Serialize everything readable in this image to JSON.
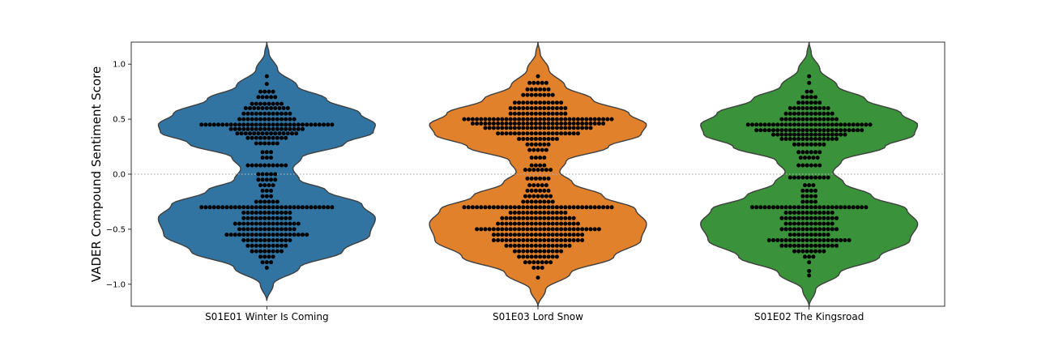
{
  "chart_data": {
    "type": "violin-swarm",
    "ylabel": "VADER Compound Sentiment Score",
    "ylim": [
      -1.2,
      1.2
    ],
    "yticks": [
      1.0,
      0.5,
      0.0,
      -0.5,
      -1.0
    ],
    "ytick_labels": [
      "1.0",
      "0.5",
      "0.0",
      "−0.5",
      "−1.0"
    ],
    "reference_line": {
      "y": 0.0,
      "style": "dotted"
    },
    "grid": false,
    "legend": "none",
    "categories": [
      "S01E01 Winter Is Coming",
      "S01E03 Lord Snow",
      "S01E02 The Kingsroad"
    ],
    "series": [
      {
        "name": "S01E01 Winter Is Coming",
        "color": "#3274a1",
        "violin_range": [
          -1.15,
          1.2
        ],
        "density": [
          [
            -1.15,
            0.0
          ],
          [
            -1.0,
            0.06
          ],
          [
            -0.85,
            0.3
          ],
          [
            -0.7,
            0.7
          ],
          [
            -0.55,
            0.95
          ],
          [
            -0.4,
            1.0
          ],
          [
            -0.28,
            0.88
          ],
          [
            -0.15,
            0.55
          ],
          [
            -0.05,
            0.3
          ],
          [
            0.05,
            0.24
          ],
          [
            0.15,
            0.32
          ],
          [
            0.28,
            0.72
          ],
          [
            0.38,
            0.98
          ],
          [
            0.45,
            1.0
          ],
          [
            0.55,
            0.86
          ],
          [
            0.68,
            0.55
          ],
          [
            0.8,
            0.28
          ],
          [
            0.95,
            0.1
          ],
          [
            1.1,
            0.02
          ],
          [
            1.2,
            0.0
          ]
        ],
        "swarm": [
          {
            "y": 0.89,
            "n": 1
          },
          {
            "y": 0.82,
            "n": 1
          },
          {
            "y": 0.75,
            "n": 4
          },
          {
            "y": 0.7,
            "n": 5
          },
          {
            "y": 0.64,
            "n": 8
          },
          {
            "y": 0.6,
            "n": 11
          },
          {
            "y": 0.55,
            "n": 12
          },
          {
            "y": 0.5,
            "n": 14
          },
          {
            "y": 0.45,
            "n": 32
          },
          {
            "y": 0.41,
            "n": 18
          },
          {
            "y": 0.37,
            "n": 15
          },
          {
            "y": 0.33,
            "n": 10
          },
          {
            "y": 0.28,
            "n": 6
          },
          {
            "y": 0.2,
            "n": 3
          },
          {
            "y": 0.15,
            "n": 3
          },
          {
            "y": 0.08,
            "n": 10
          },
          {
            "y": 0.0,
            "n": 5
          },
          {
            "y": -0.05,
            "n": 5
          },
          {
            "y": -0.1,
            "n": 4
          },
          {
            "y": -0.15,
            "n": 3
          },
          {
            "y": -0.2,
            "n": 3
          },
          {
            "y": -0.25,
            "n": 6
          },
          {
            "y": -0.3,
            "n": 32
          },
          {
            "y": -0.35,
            "n": 12
          },
          {
            "y": -0.4,
            "n": 12
          },
          {
            "y": -0.45,
            "n": 16
          },
          {
            "y": -0.5,
            "n": 14
          },
          {
            "y": -0.55,
            "n": 20
          },
          {
            "y": -0.6,
            "n": 12
          },
          {
            "y": -0.65,
            "n": 10
          },
          {
            "y": -0.7,
            "n": 8
          },
          {
            "y": -0.75,
            "n": 4
          },
          {
            "y": -0.8,
            "n": 3
          },
          {
            "y": -0.85,
            "n": 1
          }
        ]
      },
      {
        "name": "S01E03 Lord Snow",
        "color": "#e1812c",
        "violin_range": [
          -1.2,
          1.2
        ],
        "density": [
          [
            -1.2,
            0.0
          ],
          [
            -1.05,
            0.07
          ],
          [
            -0.9,
            0.3
          ],
          [
            -0.75,
            0.7
          ],
          [
            -0.6,
            0.95
          ],
          [
            -0.45,
            1.0
          ],
          [
            -0.32,
            0.9
          ],
          [
            -0.2,
            0.6
          ],
          [
            -0.08,
            0.32
          ],
          [
            0.02,
            0.2
          ],
          [
            0.12,
            0.26
          ],
          [
            0.25,
            0.65
          ],
          [
            0.36,
            0.95
          ],
          [
            0.45,
            1.0
          ],
          [
            0.55,
            0.84
          ],
          [
            0.68,
            0.5
          ],
          [
            0.8,
            0.25
          ],
          [
            0.95,
            0.1
          ],
          [
            1.1,
            0.02
          ],
          [
            1.2,
            0.0
          ]
        ],
        "swarm": [
          {
            "y": 0.89,
            "n": 1
          },
          {
            "y": 0.83,
            "n": 5
          },
          {
            "y": 0.77,
            "n": 6
          },
          {
            "y": 0.72,
            "n": 8
          },
          {
            "y": 0.65,
            "n": 12
          },
          {
            "y": 0.6,
            "n": 14
          },
          {
            "y": 0.55,
            "n": 14
          },
          {
            "y": 0.5,
            "n": 36
          },
          {
            "y": 0.46,
            "n": 32
          },
          {
            "y": 0.42,
            "n": 26
          },
          {
            "y": 0.37,
            "n": 20
          },
          {
            "y": 0.32,
            "n": 10
          },
          {
            "y": 0.27,
            "n": 6
          },
          {
            "y": 0.22,
            "n": 5
          },
          {
            "y": 0.15,
            "n": 4
          },
          {
            "y": 0.08,
            "n": 4
          },
          {
            "y": 0.04,
            "n": 7
          },
          {
            "y": -0.04,
            "n": 6
          },
          {
            "y": -0.1,
            "n": 5
          },
          {
            "y": -0.15,
            "n": 6
          },
          {
            "y": -0.2,
            "n": 7
          },
          {
            "y": -0.25,
            "n": 8
          },
          {
            "y": -0.3,
            "n": 36
          },
          {
            "y": -0.35,
            "n": 14
          },
          {
            "y": -0.4,
            "n": 18
          },
          {
            "y": -0.45,
            "n": 20
          },
          {
            "y": -0.5,
            "n": 30
          },
          {
            "y": -0.55,
            "n": 22
          },
          {
            "y": -0.6,
            "n": 22
          },
          {
            "y": -0.65,
            "n": 16
          },
          {
            "y": -0.7,
            "n": 12
          },
          {
            "y": -0.75,
            "n": 10
          },
          {
            "y": -0.8,
            "n": 7
          },
          {
            "y": -0.85,
            "n": 3
          },
          {
            "y": -0.94,
            "n": 1
          }
        ]
      },
      {
        "name": "S01E02 The Kingsroad",
        "color": "#3a923a",
        "violin_range": [
          -1.2,
          1.2
        ],
        "density": [
          [
            -1.2,
            0.0
          ],
          [
            -1.05,
            0.06
          ],
          [
            -0.9,
            0.28
          ],
          [
            -0.75,
            0.65
          ],
          [
            -0.6,
            0.93
          ],
          [
            -0.45,
            1.0
          ],
          [
            -0.32,
            0.9
          ],
          [
            -0.2,
            0.58
          ],
          [
            -0.08,
            0.32
          ],
          [
            0.02,
            0.22
          ],
          [
            0.12,
            0.3
          ],
          [
            0.25,
            0.7
          ],
          [
            0.36,
            0.97
          ],
          [
            0.45,
            1.0
          ],
          [
            0.55,
            0.85
          ],
          [
            0.68,
            0.52
          ],
          [
            0.8,
            0.26
          ],
          [
            0.95,
            0.1
          ],
          [
            1.1,
            0.02
          ],
          [
            1.2,
            0.0
          ]
        ],
        "swarm": [
          {
            "y": 0.89,
            "n": 1
          },
          {
            "y": 0.83,
            "n": 1
          },
          {
            "y": 0.75,
            "n": 2
          },
          {
            "y": 0.7,
            "n": 4
          },
          {
            "y": 0.65,
            "n": 6
          },
          {
            "y": 0.6,
            "n": 10
          },
          {
            "y": 0.55,
            "n": 12
          },
          {
            "y": 0.5,
            "n": 14
          },
          {
            "y": 0.45,
            "n": 30
          },
          {
            "y": 0.4,
            "n": 26
          },
          {
            "y": 0.36,
            "n": 18
          },
          {
            "y": 0.32,
            "n": 14
          },
          {
            "y": 0.27,
            "n": 8
          },
          {
            "y": 0.2,
            "n": 6
          },
          {
            "y": 0.15,
            "n": 5
          },
          {
            "y": 0.08,
            "n": 6
          },
          {
            "y": -0.03,
            "n": 10
          },
          {
            "y": -0.1,
            "n": 3
          },
          {
            "y": -0.15,
            "n": 4
          },
          {
            "y": -0.2,
            "n": 4
          },
          {
            "y": -0.25,
            "n": 4
          },
          {
            "y": -0.3,
            "n": 28
          },
          {
            "y": -0.35,
            "n": 12
          },
          {
            "y": -0.4,
            "n": 14
          },
          {
            "y": -0.45,
            "n": 12
          },
          {
            "y": -0.5,
            "n": 14
          },
          {
            "y": -0.55,
            "n": 10
          },
          {
            "y": -0.6,
            "n": 20
          },
          {
            "y": -0.65,
            "n": 14
          },
          {
            "y": -0.7,
            "n": 8
          },
          {
            "y": -0.75,
            "n": 3
          },
          {
            "y": -0.8,
            "n": 1
          },
          {
            "y": -0.88,
            "n": 1
          },
          {
            "y": -0.92,
            "n": 1
          }
        ]
      }
    ]
  }
}
